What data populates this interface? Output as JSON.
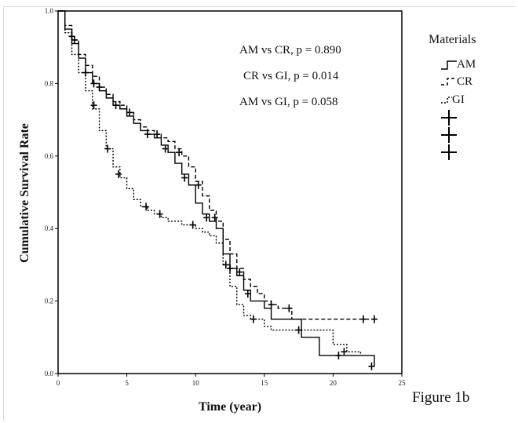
{
  "figure_caption": "Figure 1b",
  "chart_data": {
    "type": "line",
    "subtype": "kaplan-meier",
    "title": "",
    "xlabel": "Time (year)",
    "ylabel": "Cumulative Survival Rate",
    "xlim": [
      0,
      25
    ],
    "ylim": [
      0.0,
      1.0
    ],
    "xticks": [
      0,
      5,
      10,
      15,
      20,
      25
    ],
    "yticks": [
      0.0,
      0.2,
      0.4,
      0.6,
      0.8,
      1.0
    ],
    "xtick_labels": [
      "0",
      "5",
      "10",
      "15",
      "20",
      "25"
    ],
    "ytick_labels": [
      "0.0",
      "0.2",
      "0.4",
      "0.6",
      "0.8",
      "1.0"
    ],
    "grid": false,
    "legend": {
      "title": "Materials",
      "placement": "right-outside",
      "entries": [
        "AM",
        "CR",
        "GI"
      ],
      "extra_censor_markers": 3
    },
    "annotations": [
      "AM vs CR, p = 0.890",
      "CR vs GI, p = 0.014",
      "AM vs GI, p = 0.058"
    ],
    "series": [
      {
        "name": "AM",
        "style": "solid",
        "color": "#000000",
        "x": [
          0,
          0.5,
          1,
          1.5,
          2,
          2.5,
          3,
          3.5,
          4,
          4.5,
          5,
          5.5,
          6,
          6.5,
          7,
          7.5,
          8,
          8.5,
          9,
          9.5,
          10,
          10.5,
          11,
          11.5,
          12,
          12.5,
          13,
          13.5,
          14,
          15,
          15.5,
          17.7,
          19,
          20,
          22,
          23
        ],
        "y": [
          1.0,
          0.95,
          0.91,
          0.87,
          0.83,
          0.8,
          0.78,
          0.76,
          0.74,
          0.73,
          0.71,
          0.69,
          0.67,
          0.66,
          0.65,
          0.63,
          0.61,
          0.58,
          0.55,
          0.52,
          0.47,
          0.44,
          0.42,
          0.4,
          0.33,
          0.29,
          0.27,
          0.23,
          0.2,
          0.18,
          0.15,
          0.1,
          0.05,
          0.05,
          0.05,
          0.02
        ],
        "censored": [
          [
            1.2,
            0.92
          ],
          [
            2.0,
            0.83
          ],
          [
            2.6,
            0.8
          ],
          [
            4.2,
            0.74
          ],
          [
            6.5,
            0.66
          ],
          [
            7.8,
            0.62
          ],
          [
            9.2,
            0.54
          ],
          [
            10.8,
            0.43
          ],
          [
            12.5,
            0.29
          ],
          [
            13.8,
            0.22
          ],
          [
            20.4,
            0.05
          ],
          [
            22.8,
            0.02
          ]
        ]
      },
      {
        "name": "CR",
        "style": "dashed",
        "color": "#000000",
        "x": [
          0,
          0.5,
          1,
          1.5,
          2,
          2.5,
          3,
          3.5,
          4,
          4.5,
          5,
          5.5,
          6,
          6.5,
          7,
          7.5,
          8,
          8.5,
          9,
          9.5,
          10,
          10.5,
          11,
          11.5,
          12,
          12.5,
          13,
          13.5,
          14,
          14.5,
          15,
          15.5,
          16,
          17,
          18,
          20,
          23
        ],
        "y": [
          1.0,
          0.96,
          0.92,
          0.88,
          0.85,
          0.82,
          0.79,
          0.77,
          0.75,
          0.74,
          0.72,
          0.7,
          0.68,
          0.67,
          0.66,
          0.65,
          0.64,
          0.62,
          0.6,
          0.57,
          0.53,
          0.49,
          0.45,
          0.42,
          0.37,
          0.33,
          0.29,
          0.26,
          0.24,
          0.22,
          0.2,
          0.19,
          0.18,
          0.15,
          0.15,
          0.15,
          0.15
        ],
        "censored": [
          [
            1.0,
            0.93
          ],
          [
            3.0,
            0.79
          ],
          [
            5.2,
            0.72
          ],
          [
            7.2,
            0.66
          ],
          [
            8.8,
            0.61
          ],
          [
            10.2,
            0.52
          ],
          [
            11.4,
            0.43
          ],
          [
            13.2,
            0.28
          ],
          [
            15.5,
            0.19
          ],
          [
            16.8,
            0.18
          ],
          [
            22.2,
            0.15
          ],
          [
            23.0,
            0.15
          ]
        ]
      },
      {
        "name": "GI",
        "style": "dashed",
        "color": "#000000",
        "x": [
          0,
          0.5,
          1,
          1.5,
          2,
          2.5,
          3,
          3.5,
          4,
          4.5,
          5,
          5.5,
          6,
          6.5,
          7,
          7.5,
          8,
          8.5,
          9,
          9.5,
          10,
          10.5,
          11,
          11.5,
          12,
          12.5,
          13,
          13.5,
          14,
          15,
          15.5,
          17,
          19,
          20,
          21,
          22
        ],
        "y": [
          1.0,
          0.94,
          0.88,
          0.83,
          0.78,
          0.73,
          0.67,
          0.62,
          0.57,
          0.54,
          0.51,
          0.48,
          0.46,
          0.45,
          0.44,
          0.43,
          0.42,
          0.42,
          0.41,
          0.41,
          0.4,
          0.39,
          0.38,
          0.36,
          0.3,
          0.24,
          0.19,
          0.16,
          0.15,
          0.13,
          0.12,
          0.12,
          0.12,
          0.08,
          0.06,
          0.05
        ],
        "censored": [
          [
            2.6,
            0.74
          ],
          [
            3.6,
            0.62
          ],
          [
            4.4,
            0.55
          ],
          [
            6.4,
            0.46
          ],
          [
            7.4,
            0.44
          ],
          [
            9.8,
            0.41
          ],
          [
            12.2,
            0.3
          ],
          [
            14.2,
            0.15
          ],
          [
            17.5,
            0.12
          ],
          [
            20.8,
            0.06
          ]
        ]
      }
    ]
  }
}
